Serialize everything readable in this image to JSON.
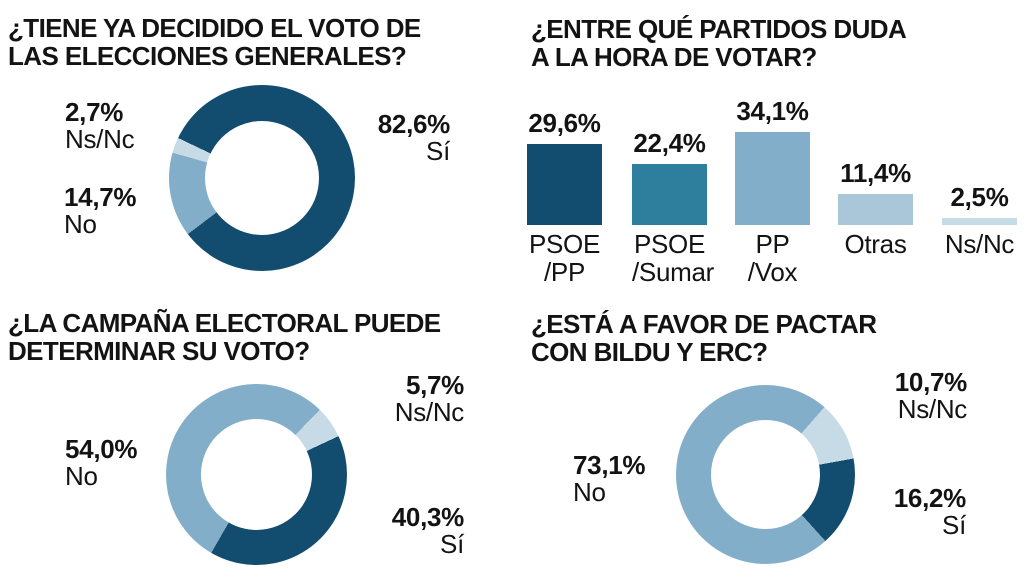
{
  "page": {
    "background": "#FFFFFF",
    "text_color": "#131313"
  },
  "palette": {
    "navy": "#124C6E",
    "teal": "#2E7E9E",
    "medium_blue": "#82AEC9",
    "light_blue": "#A9C7D9",
    "pale_blue": "#C7DBE7"
  },
  "chart_data": [
    {
      "id": "decided-vote",
      "type": "donut",
      "title": [
        "¿TIENE YA DECIDIDO EL VOTO DE",
        "LAS ELECCIONES GENERALES?"
      ],
      "start_angle_deg": -64.5,
      "segments": [
        {
          "label": "Sí",
          "value": 82.6,
          "value_label": "82,6%",
          "color": "#124C6E"
        },
        {
          "label": "No",
          "value": 14.7,
          "value_label": "14,7%",
          "color": "#82AEC9"
        },
        {
          "label": "Ns/Nc",
          "value": 2.7,
          "value_label": "2,7%",
          "color": "#C7DBE7"
        }
      ]
    },
    {
      "id": "party-doubt",
      "type": "bar",
      "title": [
        "¿ENTRE QUÉ PARTIDOS DUDA",
        "A LA HORA DE VOTAR?"
      ],
      "ylim": [
        0,
        40
      ],
      "grid": false,
      "axes_hidden": true,
      "categories": [
        "PSOE /PP",
        "PSOE /Sumar",
        "PP /Vox",
        "Otras",
        "Ns/Nc"
      ],
      "bars": [
        {
          "label_lines": [
            "PSOE",
            "/PP"
          ],
          "value": 29.6,
          "value_label": "29,6%",
          "color": "#124C6E"
        },
        {
          "label_lines": [
            "PSOE",
            "/Sumar"
          ],
          "value": 22.4,
          "value_label": "22,4%",
          "color": "#2E7E9E"
        },
        {
          "label_lines": [
            "PP",
            "/Vox"
          ],
          "value": 34.1,
          "value_label": "34,1%",
          "color": "#82AEC9"
        },
        {
          "label_lines": [
            "Otras"
          ],
          "value": 11.4,
          "value_label": "11,4%",
          "color": "#A9C7D9"
        },
        {
          "label_lines": [
            "Ns/Nc"
          ],
          "value": 2.5,
          "value_label": "2,5%",
          "color": "#C7DBE7"
        }
      ]
    },
    {
      "id": "campaign-influence",
      "type": "donut",
      "title": [
        "¿LA CAMPAÑA ELECTORAL PUEDE",
        "DETERMINAR SU VOTO?"
      ],
      "start_angle_deg": 210,
      "segments": [
        {
          "label": "No",
          "value": 54.0,
          "value_label": "54,0%",
          "color": "#82AEC9"
        },
        {
          "label": "Ns/Nc",
          "value": 5.7,
          "value_label": "5,7%",
          "color": "#C7DBE7"
        },
        {
          "label": "Sí",
          "value": 40.3,
          "value_label": "40,3%",
          "color": "#124C6E"
        }
      ]
    },
    {
      "id": "bildu-erc-pact",
      "type": "donut",
      "title": [
        "¿ESTÁ A FAVOR DE PACTAR",
        "CON BILDU Y ERC?"
      ],
      "start_angle_deg": 138,
      "segments": [
        {
          "label": "No",
          "value": 73.1,
          "value_label": "73,1%",
          "color": "#82AEC9"
        },
        {
          "label": "Ns/Nc",
          "value": 10.7,
          "value_label": "10,7%",
          "color": "#C7DBE7"
        },
        {
          "label": "Sí",
          "value": 16.2,
          "value_label": "16,2%",
          "color": "#124C6E"
        }
      ]
    }
  ]
}
